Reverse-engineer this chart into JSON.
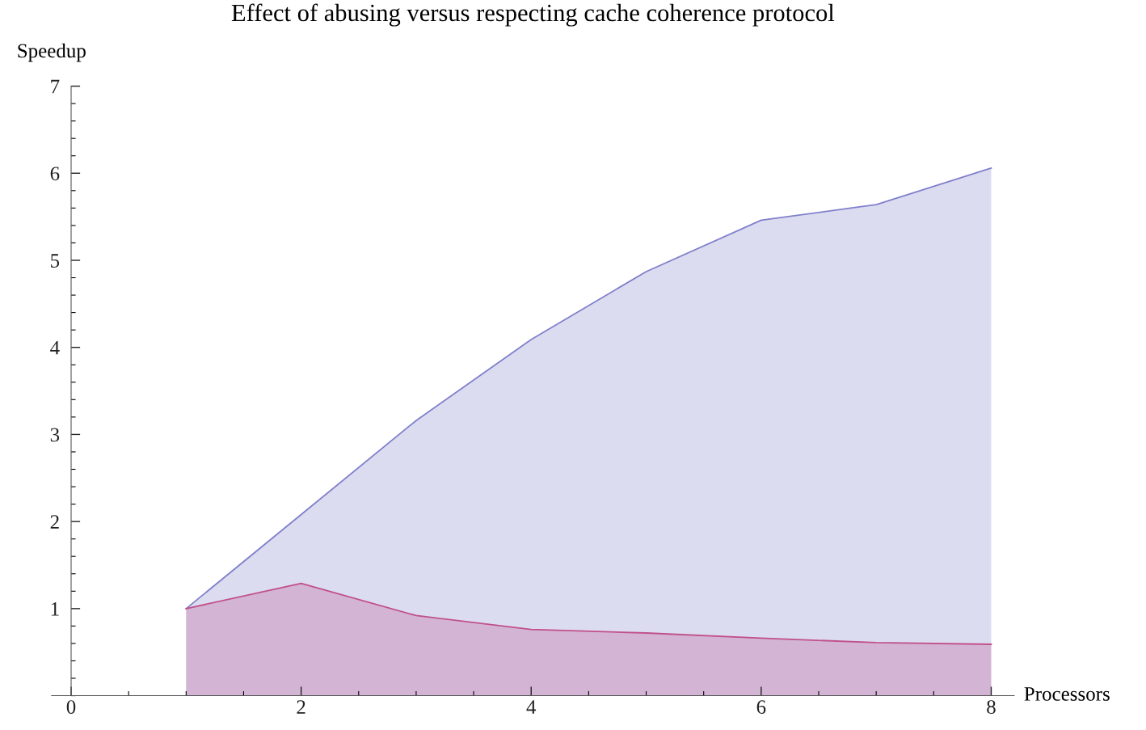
{
  "chart_data": {
    "type": "area",
    "title": "Effect of abusing versus respecting cache coherence protocol",
    "xlabel": "Processors",
    "ylabel": "Speedup",
    "x": [
      1,
      2,
      3,
      4,
      5,
      6,
      7,
      8
    ],
    "series": [
      {
        "color": "#8080cc",
        "values": [
          1.0,
          2.08,
          3.16,
          4.09,
          4.87,
          5.46,
          5.64,
          6.06
        ]
      },
      {
        "color": "#c0508a",
        "values": [
          1.0,
          1.29,
          0.92,
          0.76,
          0.72,
          0.66,
          0.61,
          0.59
        ]
      }
    ],
    "xlim": [
      -0.17,
      8.2
    ],
    "ylim": [
      0,
      7
    ],
    "xticks": [
      0,
      2,
      4,
      6,
      8
    ],
    "yticks": [
      1,
      2,
      3,
      4,
      5,
      6,
      7
    ],
    "grid": false,
    "legend": false
  }
}
